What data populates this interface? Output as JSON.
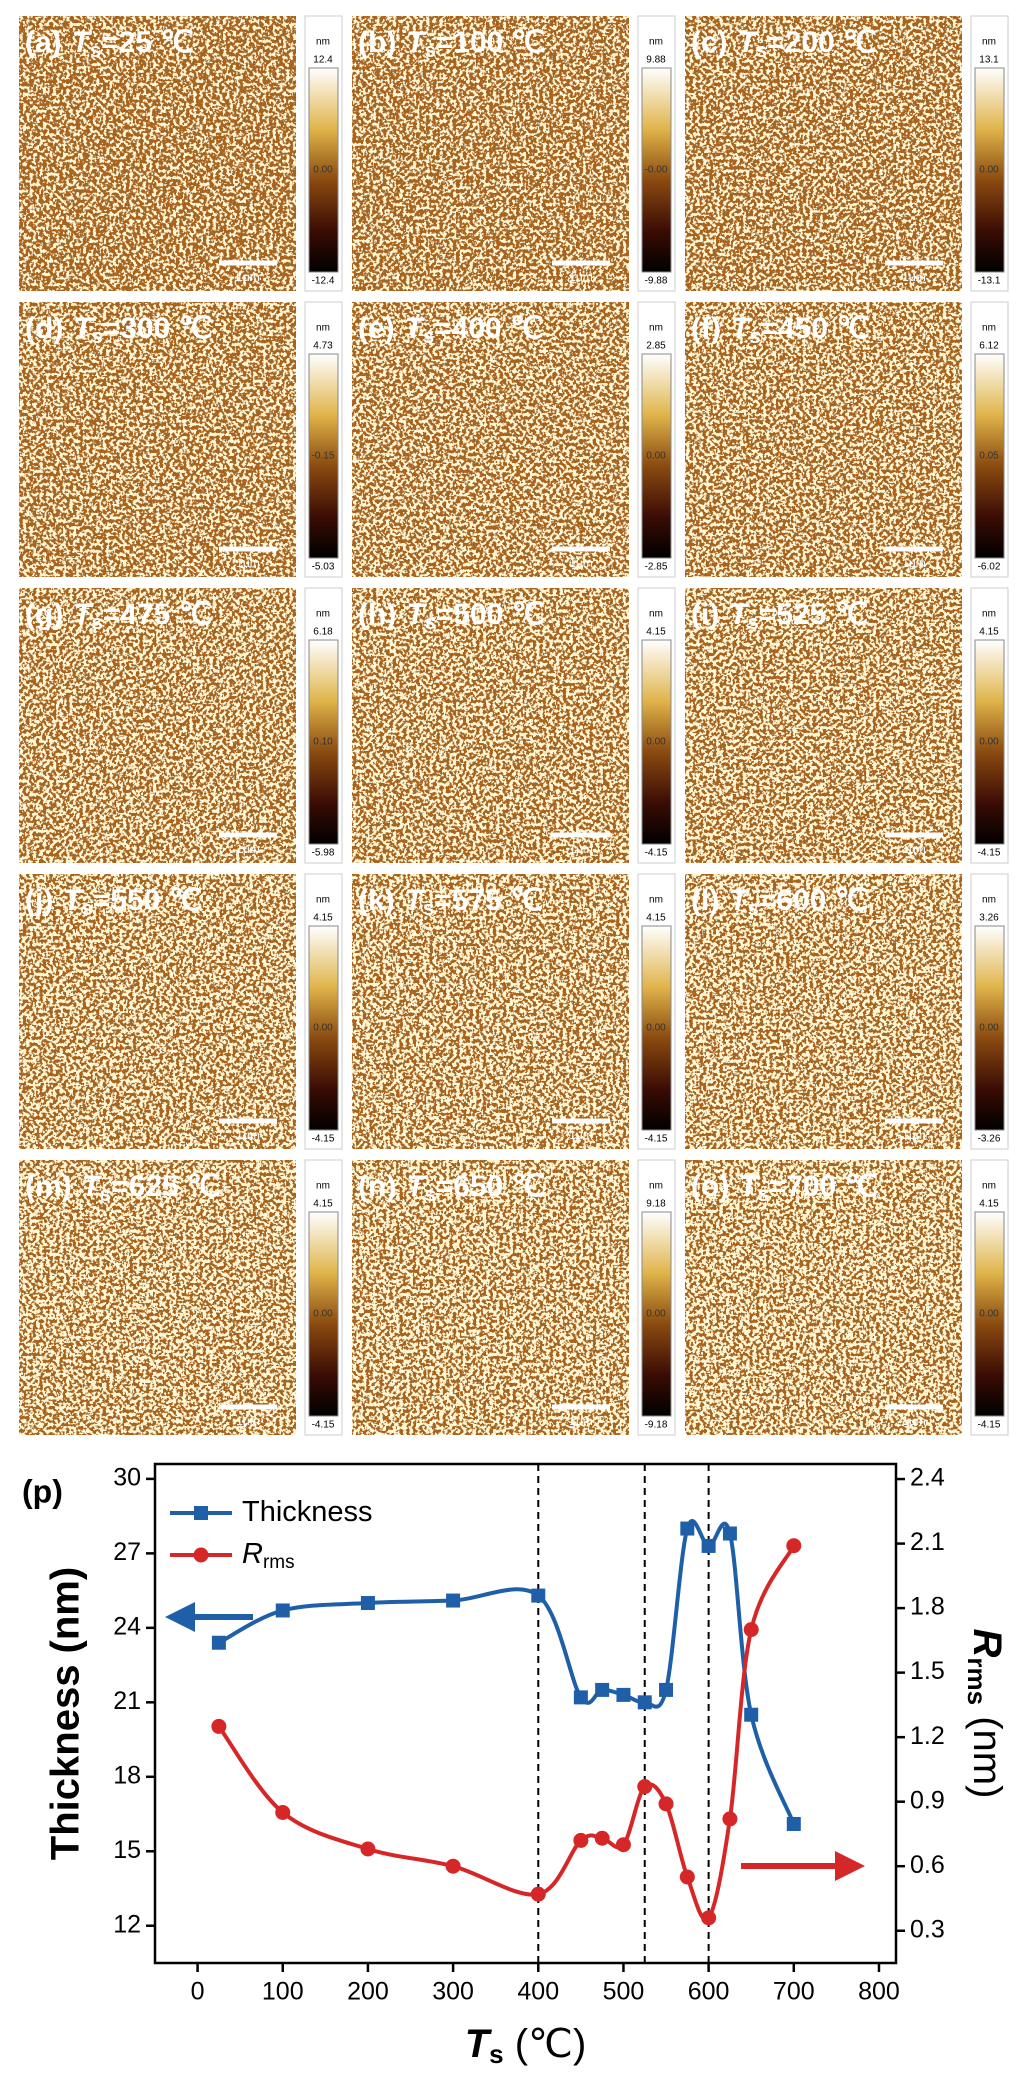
{
  "symbol": "T",
  "symbol_sub": "s",
  "unit": "nm",
  "scale_bar": "1μm",
  "panels": [
    {
      "label": "(a)",
      "temp": "=25 ℃",
      "max": "12.4",
      "mid": "0.00",
      "min": "-12.4"
    },
    {
      "label": "(b)",
      "temp": "=100 ℃",
      "max": "9.88",
      "mid": "-0.00",
      "min": "-9.88"
    },
    {
      "label": "(c)",
      "temp": "=200 ℃",
      "max": "13.1",
      "mid": "0.00",
      "min": "-13.1"
    },
    {
      "label": "(d)",
      "temp": "=300 ℃",
      "max": "4.73",
      "mid": "-0.15",
      "min": "-5.03"
    },
    {
      "label": "(e)",
      "temp": "=400 ℃",
      "max": "2.85",
      "mid": "0.00",
      "min": "-2.85"
    },
    {
      "label": "(f)",
      "temp": "=450 ℃",
      "max": "6.12",
      "mid": "0.05",
      "min": "-6.02"
    },
    {
      "label": "(g)",
      "temp": "=475 ℃",
      "max": "6.18",
      "mid": "0.10",
      "min": "-5.98"
    },
    {
      "label": "(h)",
      "temp": "=500 ℃",
      "max": "4.15",
      "mid": "0.00",
      "min": "-4.15"
    },
    {
      "label": "(i)",
      "temp": "=525 ℃",
      "max": "4.15",
      "mid": "0.00",
      "min": "-4.15"
    },
    {
      "label": "(j)",
      "temp": "=550 ℃",
      "max": "4.15",
      "mid": "0.00",
      "min": "-4.15"
    },
    {
      "label": "(k)",
      "temp": "=575 ℃",
      "max": "4.15",
      "mid": "0.00",
      "min": "-4.15"
    },
    {
      "label": "(l)",
      "temp": "=600 ℃",
      "max": "3.26",
      "mid": "0.00",
      "min": "-3.26"
    },
    {
      "label": "(m)",
      "temp": "=625 ℃",
      "max": "4.15",
      "mid": "0.00",
      "min": "-4.15"
    },
    {
      "label": "(n)",
      "temp": "=650 ℃",
      "max": "9.18",
      "mid": "0.00",
      "min": "-9.18"
    },
    {
      "label": "(o)",
      "temp": "=700 ℃",
      "max": "4.15",
      "mid": "0.00",
      "min": "-4.15"
    }
  ],
  "chart_data": {
    "type": "line",
    "panel_label": "(p)",
    "x_label": "T",
    "x_label_sub": "s",
    "x_label_unit": " (℃)",
    "y_label": "Thickness (nm)",
    "y2_label": "R",
    "y2_label_sub": "rms",
    "y2_label_unit": " (nm)",
    "x": [
      25,
      100,
      200,
      300,
      400,
      450,
      475,
      500,
      525,
      550,
      575,
      600,
      625,
      650,
      700
    ],
    "series": [
      {
        "name": "Thickness",
        "color": "#1f5fa8",
        "marker": "square",
        "values": [
          23.4,
          24.7,
          25.0,
          25.1,
          25.3,
          21.2,
          21.5,
          21.3,
          21.0,
          21.5,
          28.0,
          27.3,
          27.8,
          20.5,
          16.1
        ]
      },
      {
        "name": "R",
        "name_sub": "rms",
        "color": "#d62728",
        "marker": "circle",
        "axis": "y2",
        "values": [
          1.25,
          0.85,
          0.68,
          0.6,
          0.47,
          0.72,
          0.73,
          0.7,
          0.97,
          0.89,
          0.55,
          0.36,
          0.82,
          1.7,
          2.09
        ]
      }
    ],
    "xlim": [
      -50,
      820
    ],
    "xticks": [
      0,
      100,
      200,
      300,
      400,
      500,
      600,
      700,
      800
    ],
    "ylim": [
      10.5,
      30.6
    ],
    "yticks": [
      12,
      15,
      18,
      21,
      24,
      27,
      30
    ],
    "y2lim": [
      0.15,
      2.47
    ],
    "y2ticks": [
      0.3,
      0.6,
      0.9,
      1.2,
      1.5,
      1.8,
      2.1,
      2.4
    ],
    "vlines": [
      400,
      525,
      600
    ]
  }
}
